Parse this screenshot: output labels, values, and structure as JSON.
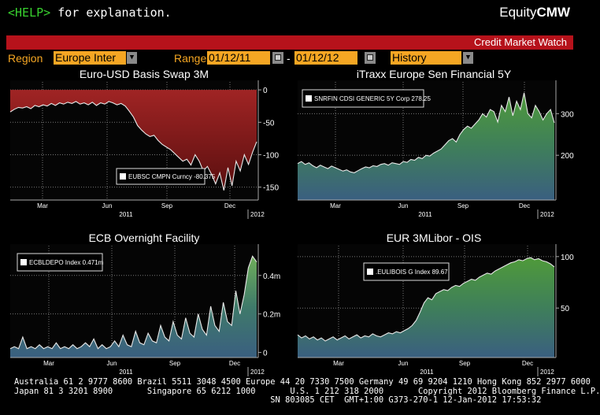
{
  "help": {
    "key": "<HELP>",
    "text": " for explanation."
  },
  "brand": {
    "prefix": "Equity",
    "suffix": "CMW"
  },
  "title_bar": "Credit Market Watch",
  "controls": {
    "region_label": "Region",
    "region_value": "Europe Inter",
    "range_label": "Range",
    "start_date": "01/12/11",
    "separator": "-",
    "end_date": "01/12/12",
    "mode_value": "History"
  },
  "colors": {
    "accent": "#f5a623",
    "title_bar": "#b6121b",
    "help": "#38d12f"
  },
  "footer": {
    "line1": "Australia 61 2 9777 8600 Brazil 5511 3048 4500 Europe 44 20 7330 7500 Germany 49 69 9204 1210 Hong Kong 852 2977 6000",
    "line2": "Japan 81 3 3201 8900       Singapore 65 6212 1000       U.S. 1 212 318 2000       Copyright 2012 Bloomberg Finance L.P.",
    "line3": "                                                    SN 803085 CET  GMT+1:00 G373-270-1 12-Jan-2012 17:53:32"
  },
  "chart_data": [
    {
      "type": "area",
      "title": "Euro-USD Basis Swap 3M",
      "legend": "EUBSC CMPN Curncy  -80.375",
      "x_ticks": [
        "Mar",
        "Jun",
        "Sep",
        "Dec"
      ],
      "year_labels": [
        "2011",
        "2012"
      ],
      "y_ticks": [
        "0",
        "-50",
        "-100",
        "-150"
      ],
      "ylim": [
        -165,
        5
      ],
      "fill_color": "#8b1a1a",
      "values": [
        -34,
        -30,
        -27,
        -28,
        -26,
        -29,
        -24,
        -26,
        -23,
        -25,
        -21,
        -24,
        -20,
        -22,
        -19,
        -21,
        -18,
        -22,
        -20,
        -23,
        -19,
        -24,
        -20,
        -22,
        -18,
        -20,
        -23,
        -21,
        -25,
        -33,
        -42,
        -55,
        -62,
        -68,
        -72,
        -70,
        -78,
        -84,
        -88,
        -92,
        -98,
        -104,
        -110,
        -107,
        -116,
        -100,
        -110,
        -125,
        -118,
        -130,
        -145,
        -128,
        -155,
        -120,
        -148,
        -110,
        -125,
        -100,
        -115,
        -96,
        -80
      ]
    },
    {
      "type": "area",
      "title": "iTraxx Europe Sen Financial 5Y",
      "legend": "SNRFIN CDSI GENERIC 5Y Corp  278.25",
      "x_ticks": [
        "Mar",
        "Jun",
        "Sep",
        "Dec"
      ],
      "year_labels": [
        "2011",
        "2012"
      ],
      "y_ticks": [
        "300",
        "200"
      ],
      "ylim": [
        100,
        365
      ],
      "fill_color": "#3f8f4a",
      "values": [
        180,
        185,
        178,
        182,
        175,
        170,
        176,
        172,
        168,
        174,
        170,
        166,
        162,
        165,
        160,
        158,
        163,
        168,
        172,
        170,
        175,
        173,
        178,
        180,
        176,
        182,
        180,
        178,
        185,
        183,
        190,
        188,
        195,
        192,
        200,
        198,
        205,
        210,
        215,
        225,
        235,
        240,
        232,
        250,
        262,
        270,
        265,
        275,
        285,
        300,
        292,
        310,
        305,
        280,
        320,
        305,
        340,
        295,
        330,
        310,
        350,
        300,
        290,
        320,
        305,
        285,
        300,
        310,
        278
      ]
    },
    {
      "type": "area",
      "title": "ECB Overnight Facility",
      "legend": "ECBLDEPO Index  0.471m",
      "x_ticks": [
        "Mar",
        "Jun",
        "Sep",
        "Dec"
      ],
      "year_labels": [
        "2011",
        "2012"
      ],
      "y_ticks": [
        "0.4m",
        "0.2m",
        "0"
      ],
      "ylim": [
        -0.01,
        0.53
      ],
      "fill_color": "#3f6f7a",
      "values": [
        0.02,
        0.03,
        0.02,
        0.08,
        0.02,
        0.03,
        0.02,
        0.04,
        0.02,
        0.03,
        0.02,
        0.05,
        0.02,
        0.03,
        0.02,
        0.04,
        0.02,
        0.03,
        0.05,
        0.03,
        0.07,
        0.02,
        0.04,
        0.02,
        0.03,
        0.06,
        0.03,
        0.09,
        0.04,
        0.03,
        0.11,
        0.05,
        0.04,
        0.1,
        0.06,
        0.05,
        0.14,
        0.08,
        0.06,
        0.16,
        0.09,
        0.07,
        0.18,
        0.1,
        0.08,
        0.2,
        0.12,
        0.09,
        0.24,
        0.14,
        0.11,
        0.26,
        0.16,
        0.14,
        0.32,
        0.2,
        0.3,
        0.44,
        0.5,
        0.47
      ]
    },
    {
      "type": "area",
      "title": "EUR 3MLibor - OIS",
      "legend": ".EULIBOIS G Index  89.67",
      "x_ticks": [
        "Mar",
        "Jun",
        "Sep",
        "Dec"
      ],
      "year_labels": [
        "2011",
        "2012"
      ],
      "y_ticks": [
        "100",
        "50"
      ],
      "ylim": [
        5,
        106
      ],
      "fill_color": "#3f8f4a",
      "values": [
        24,
        21,
        23,
        20,
        22,
        19,
        21,
        18,
        20,
        22,
        19,
        21,
        23,
        20,
        22,
        24,
        21,
        23,
        22,
        25,
        23,
        22,
        24,
        26,
        25,
        27,
        26,
        28,
        30,
        33,
        38,
        46,
        55,
        60,
        58,
        64,
        66,
        68,
        67,
        70,
        72,
        71,
        74,
        76,
        78,
        77,
        80,
        82,
        84,
        83,
        86,
        88,
        90,
        92,
        94,
        95,
        97,
        96,
        98,
        99,
        97,
        98,
        96,
        95,
        93,
        90
      ]
    }
  ]
}
